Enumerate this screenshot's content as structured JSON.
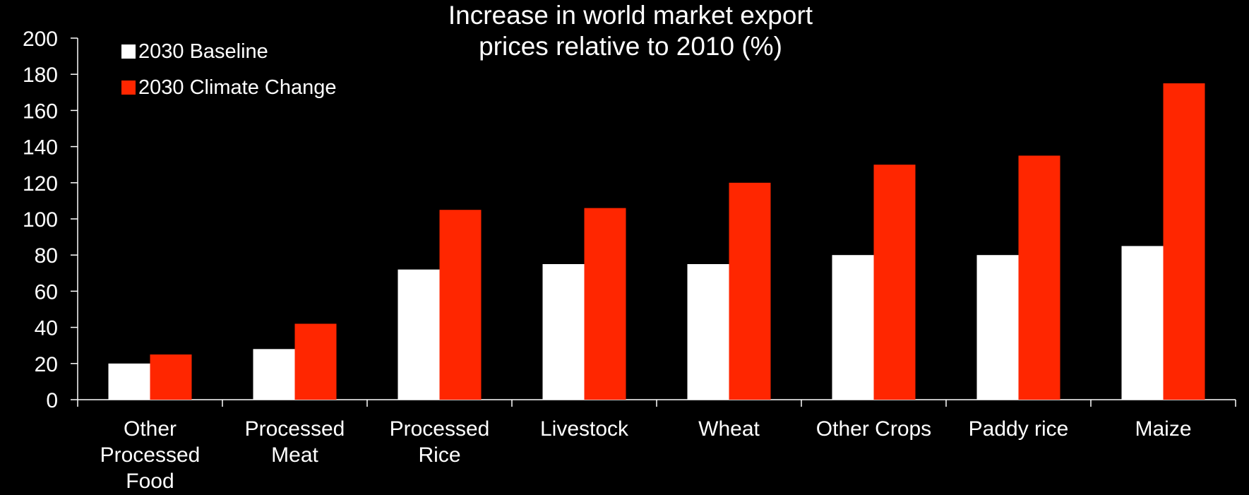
{
  "chart_data": {
    "type": "bar",
    "title_lines": [
      "Increase in world market export",
      "prices relative to 2010 (%)"
    ],
    "categories": [
      [
        "Other",
        "Processed",
        "Food"
      ],
      [
        "Processed",
        "Meat"
      ],
      [
        "Processed",
        "Rice"
      ],
      [
        "Livestock"
      ],
      [
        "Wheat"
      ],
      [
        "Other Crops"
      ],
      [
        "Paddy rice"
      ],
      [
        "Maize"
      ]
    ],
    "series": [
      {
        "name": "2030 Baseline",
        "color": "#ffffff",
        "values": [
          20,
          28,
          72,
          75,
          75,
          80,
          80,
          85
        ]
      },
      {
        "name": "2030 Climate Change",
        "color": "#ff2600",
        "values": [
          25,
          42,
          105,
          106,
          120,
          130,
          135,
          175
        ]
      }
    ],
    "ylim": [
      0,
      200
    ],
    "yticks": [
      0,
      20,
      40,
      60,
      80,
      100,
      120,
      140,
      160,
      180,
      200
    ],
    "grid": false,
    "legend_position": "top-left"
  }
}
